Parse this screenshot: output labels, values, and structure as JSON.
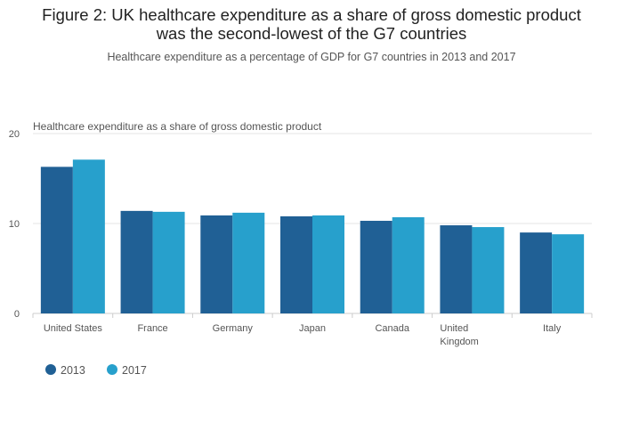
{
  "chart_data": {
    "type": "bar",
    "title_lines": [
      "Figure 2: UK healthcare expenditure as a share of gross domestic product",
      "was the second-lowest of the G7 countries"
    ],
    "subtitle": "Healthcare expenditure as a percentage of GDP for G7 countries in 2013 and 2017",
    "ylabel": "Healthcare expenditure as a share of gross domestic product",
    "xlabel": "",
    "ylim": [
      0,
      20
    ],
    "yticks": [
      0,
      10,
      20
    ],
    "grid": true,
    "legend_placement": "bottom-left",
    "categories": [
      [
        "United States"
      ],
      [
        "France"
      ],
      [
        "Germany"
      ],
      [
        "Japan"
      ],
      [
        "Canada"
      ],
      [
        "United",
        "Kingdom"
      ],
      [
        "Italy"
      ]
    ],
    "series": [
      {
        "name": "2013",
        "color": "#206095",
        "values": [
          16.3,
          11.4,
          10.9,
          10.8,
          10.3,
          9.8,
          9.0
        ]
      },
      {
        "name": "2017",
        "color": "#27a0cc",
        "values": [
          17.1,
          11.3,
          11.2,
          10.9,
          10.7,
          9.6,
          8.8
        ]
      }
    ]
  }
}
